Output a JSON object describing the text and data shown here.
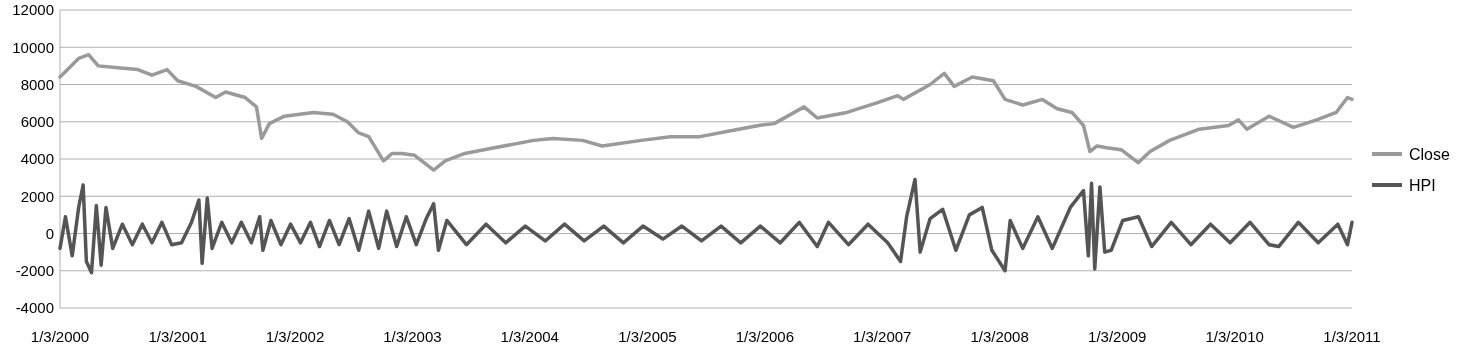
{
  "chart_data": {
    "type": "line",
    "xlim": [
      "2000-01-03",
      "2011-01-03"
    ],
    "xticks": [
      {
        "value": "2000-01-03",
        "label": "1/3/2000"
      },
      {
        "value": "2001-01-03",
        "label": "1/3/2001"
      },
      {
        "value": "2002-01-03",
        "label": "1/3/2002"
      },
      {
        "value": "2003-01-03",
        "label": "1/3/2003"
      },
      {
        "value": "2004-01-03",
        "label": "1/3/2004"
      },
      {
        "value": "2005-01-03",
        "label": "1/3/2005"
      },
      {
        "value": "2006-01-03",
        "label": "1/3/2006"
      },
      {
        "value": "2007-01-03",
        "label": "1/3/2007"
      },
      {
        "value": "2008-01-03",
        "label": "1/3/2008"
      },
      {
        "value": "2009-01-03",
        "label": "1/3/2009"
      },
      {
        "value": "2010-01-03",
        "label": "1/3/2010"
      },
      {
        "value": "2011-01-03",
        "label": "1/3/2011"
      }
    ],
    "ylim": [
      -4000,
      12000
    ],
    "yticks": [
      -4000,
      -2000,
      0,
      2000,
      4000,
      6000,
      8000,
      10000,
      12000
    ],
    "grid": "y",
    "legend": "right",
    "line_style": "solid",
    "marker": "none",
    "series": [
      {
        "name": "Close",
        "color": "#9a9a9a",
        "x": [
          "2000-01-03",
          "2000-02-01",
          "2000-03-01",
          "2000-04-01",
          "2000-05-01",
          "2000-07-01",
          "2000-09-01",
          "2000-10-15",
          "2000-12-01",
          "2001-01-03",
          "2001-03-01",
          "2001-05-01",
          "2001-06-01",
          "2001-08-01",
          "2001-09-05",
          "2001-09-21",
          "2001-10-15",
          "2001-12-01",
          "2002-03-01",
          "2002-05-01",
          "2002-06-15",
          "2002-07-20",
          "2002-08-20",
          "2002-10-05",
          "2002-11-01",
          "2002-12-01",
          "2003-01-10",
          "2003-03-10",
          "2003-04-15",
          "2003-06-15",
          "2003-09-15",
          "2004-01-15",
          "2004-03-15",
          "2004-06-15",
          "2004-08-15",
          "2004-12-15",
          "2005-03-15",
          "2005-06-15",
          "2005-09-15",
          "2005-12-15",
          "2006-02-01",
          "2006-05-05",
          "2006-06-15",
          "2006-09-15",
          "2006-12-15",
          "2007-02-20",
          "2007-03-10",
          "2007-06-01",
          "2007-07-15",
          "2007-08-15",
          "2007-10-10",
          "2007-12-15",
          "2008-01-20",
          "2008-03-15",
          "2008-05-15",
          "2008-06-30",
          "2008-08-15",
          "2008-09-20",
          "2008-10-10",
          "2008-11-01",
          "2008-12-01",
          "2009-01-15",
          "2009-03-09",
          "2009-04-15",
          "2009-06-15",
          "2009-09-15",
          "2009-12-15",
          "2010-01-15",
          "2010-02-10",
          "2010-04-20",
          "2010-07-05",
          "2010-09-15",
          "2010-11-15",
          "2010-12-20",
          "2011-01-03"
        ],
        "values": [
          8400,
          8900,
          9400,
          9600,
          9000,
          8900,
          8800,
          8500,
          8800,
          8200,
          7900,
          7300,
          7600,
          7300,
          6800,
          5100,
          5900,
          6300,
          6500,
          6400,
          6000,
          5400,
          5200,
          3900,
          4300,
          4300,
          4200,
          3400,
          3900,
          4300,
          4600,
          5000,
          5100,
          5000,
          4700,
          5000,
          5200,
          5200,
          5500,
          5800,
          5900,
          6800,
          6200,
          6500,
          7000,
          7400,
          7200,
          8000,
          8600,
          7900,
          8400,
          8200,
          7200,
          6900,
          7200,
          6700,
          6500,
          5800,
          4400,
          4700,
          4600,
          4500,
          3800,
          4400,
          5000,
          5600,
          5800,
          6100,
          5600,
          6300,
          5700,
          6100,
          6500,
          7300,
          7200
        ]
      },
      {
        "name": "HPI",
        "color": "#555555",
        "x": [
          "2000-01-03",
          "2000-01-20",
          "2000-02-10",
          "2000-03-01",
          "2000-03-15",
          "2000-03-25",
          "2000-04-10",
          "2000-04-25",
          "2000-05-10",
          "2000-05-25",
          "2000-06-15",
          "2000-07-15",
          "2000-08-15",
          "2000-09-15",
          "2000-10-15",
          "2000-11-15",
          "2000-12-15",
          "2001-01-15",
          "2001-02-15",
          "2001-03-10",
          "2001-03-20",
          "2001-04-05",
          "2001-04-20",
          "2001-05-20",
          "2001-06-20",
          "2001-07-20",
          "2001-08-20",
          "2001-09-15",
          "2001-09-25",
          "2001-10-20",
          "2001-11-20",
          "2001-12-20",
          "2002-01-20",
          "2002-02-20",
          "2002-03-20",
          "2002-04-20",
          "2002-05-20",
          "2002-06-20",
          "2002-07-20",
          "2002-08-20",
          "2002-09-20",
          "2002-10-15",
          "2002-11-15",
          "2002-12-15",
          "2003-01-15",
          "2003-02-15",
          "2003-03-10",
          "2003-03-25",
          "2003-04-20",
          "2003-06-20",
          "2003-08-20",
          "2003-10-20",
          "2003-12-20",
          "2004-02-20",
          "2004-04-20",
          "2004-06-20",
          "2004-08-20",
          "2004-10-20",
          "2004-12-20",
          "2005-02-20",
          "2005-04-20",
          "2005-06-20",
          "2005-08-20",
          "2005-10-20",
          "2005-12-20",
          "2006-02-20",
          "2006-04-20",
          "2006-06-15",
          "2006-07-20",
          "2006-09-20",
          "2006-11-20",
          "2007-01-20",
          "2007-03-01",
          "2007-03-20",
          "2007-04-15",
          "2007-05-01",
          "2007-06-01",
          "2007-07-10",
          "2007-08-20",
          "2007-10-01",
          "2007-11-10",
          "2007-12-10",
          "2008-01-20",
          "2008-02-05",
          "2008-03-15",
          "2008-05-01",
          "2008-06-15",
          "2008-08-10",
          "2008-09-20",
          "2008-10-05",
          "2008-10-15",
          "2008-10-25",
          "2008-11-10",
          "2008-11-25",
          "2008-12-15",
          "2009-01-20",
          "2009-03-10",
          "2009-04-20",
          "2009-06-20",
          "2009-08-20",
          "2009-10-20",
          "2009-12-20",
          "2010-02-20",
          "2010-04-20",
          "2010-05-20",
          "2010-07-20",
          "2010-09-20",
          "2010-11-20",
          "2010-12-20",
          "2011-01-03"
        ],
        "values": [
          -800,
          900,
          -1200,
          1400,
          2600,
          -1500,
          -2100,
          1500,
          -1700,
          1400,
          -800,
          500,
          -600,
          500,
          -500,
          600,
          -600,
          -500,
          600,
          1800,
          -1600,
          1900,
          -800,
          600,
          -500,
          600,
          -500,
          900,
          -900,
          700,
          -600,
          500,
          -500,
          600,
          -700,
          700,
          -600,
          800,
          -900,
          1200,
          -800,
          1200,
          -700,
          900,
          -600,
          800,
          1600,
          -900,
          700,
          -600,
          500,
          -500,
          400,
          -400,
          500,
          -400,
          400,
          -500,
          400,
          -300,
          400,
          -400,
          400,
          -500,
          400,
          -500,
          600,
          -700,
          600,
          -600,
          500,
          -500,
          -1500,
          900,
          2900,
          -1000,
          800,
          1300,
          -900,
          1000,
          1400,
          -900,
          -2000,
          700,
          -800,
          900,
          -800,
          1400,
          2300,
          -1200,
          2700,
          -1900,
          2500,
          -1000,
          -900,
          700,
          900,
          -700,
          600,
          -600,
          500,
          -500,
          600,
          -600,
          -700,
          600,
          -500,
          500,
          -600,
          600
        ]
      }
    ]
  }
}
